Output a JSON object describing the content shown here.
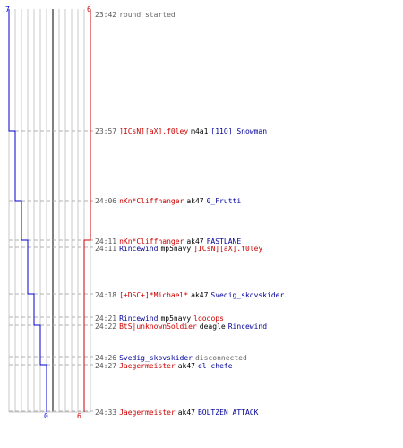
{
  "scores": {
    "blue_start": "7",
    "red_start": "6",
    "blue_end": "0",
    "red_end": "6"
  },
  "colors": {
    "blue_team": "#0000cc",
    "red_team": "#cc0000",
    "grid": "#c8c8c8",
    "center": "#808080"
  },
  "events": [
    {
      "time": "23:42",
      "parts": [
        {
          "text": "round started",
          "team": "gry"
        }
      ]
    },
    {
      "time": "23:57",
      "parts": [
        {
          "text": "]ICsN][aX].f0ley",
          "team": "red"
        },
        {
          "text": "m4a1",
          "team": "blk"
        },
        {
          "text": "[11O] Snowman",
          "team": "blue"
        }
      ]
    },
    {
      "time": "24:06",
      "parts": [
        {
          "text": "nKn*Cliffhanger",
          "team": "red"
        },
        {
          "text": "ak47",
          "team": "blk"
        },
        {
          "text": "0_Frutti",
          "team": "blue"
        }
      ]
    },
    {
      "time": "24:11",
      "parts": [
        {
          "text": "nKn*Cliffhanger",
          "team": "red"
        },
        {
          "text": "ak47",
          "team": "blk"
        },
        {
          "text": "FASTLANE",
          "team": "blue"
        }
      ]
    },
    {
      "time": "24:11",
      "parts": [
        {
          "text": "Rincewind",
          "team": "blue"
        },
        {
          "text": "mp5navy",
          "team": "blk"
        },
        {
          "text": "]ICsN][aX].f0ley",
          "team": "red"
        }
      ]
    },
    {
      "time": "24:18",
      "parts": [
        {
          "text": "[+DSC+]*Michael*",
          "team": "red"
        },
        {
          "text": "ak47",
          "team": "blk"
        },
        {
          "text": "Svedig_skovskider",
          "team": "blue"
        }
      ]
    },
    {
      "time": "24:21",
      "parts": [
        {
          "text": "Rincewind",
          "team": "blue"
        },
        {
          "text": "mp5navy",
          "team": "blk"
        },
        {
          "text": "loooops",
          "team": "red"
        }
      ]
    },
    {
      "time": "24:22",
      "parts": [
        {
          "text": "BtS|unknownSoldier",
          "team": "red"
        },
        {
          "text": "deagle",
          "team": "blk"
        },
        {
          "text": "Rincewind",
          "team": "blue"
        }
      ]
    },
    {
      "time": "24:26",
      "parts": [
        {
          "text": "Svedig_skovskider",
          "team": "blue"
        },
        {
          "text": "disconnected",
          "team": "gry"
        }
      ]
    },
    {
      "time": "24:27",
      "parts": [
        {
          "text": "Jaegermeister",
          "team": "red"
        },
        {
          "text": "ak47",
          "team": "blk"
        },
        {
          "text": "el chefe",
          "team": "blue"
        }
      ]
    },
    {
      "time": "24:33",
      "parts": [
        {
          "text": "Jaegermeister",
          "team": "red"
        },
        {
          "text": "ak47",
          "team": "blk"
        },
        {
          "text": "BOLTZEN ATTACK",
          "team": "blue"
        }
      ]
    }
  ]
}
